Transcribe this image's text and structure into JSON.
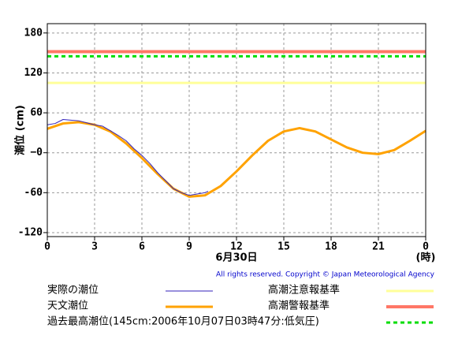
{
  "chart_data": {
    "type": "line",
    "y_label": "潮位 (cm)",
    "x_label": "6月30日",
    "x_unit": "(時)",
    "copyright": "All rights reserved. Copyright © Japan Meteorological Agency",
    "xlim": [
      0,
      24
    ],
    "xticks": [
      0,
      3,
      6,
      9,
      12,
      15,
      18,
      21,
      {
        "value": 24,
        "label": "0"
      }
    ],
    "ylim": [
      -126,
      194
    ],
    "yticks": [
      180,
      120,
      60,
      {
        "value": 0,
        "label": "−0"
      },
      -60,
      -120
    ],
    "grid": true,
    "series": [
      {
        "name": "実際の潮位",
        "color": "#3322bb",
        "width": 1,
        "x": [
          0,
          0.5,
          1,
          1.5,
          2,
          2.5,
          3,
          3.5,
          4,
          4.5,
          5,
          5.5,
          6,
          6.5,
          7,
          7.5,
          8,
          8.5,
          9,
          9.5,
          10,
          10.2
        ],
        "values": [
          42,
          44,
          50,
          49,
          48,
          45,
          42,
          40,
          33,
          26,
          18,
          6,
          -4,
          -16,
          -30,
          -42,
          -54,
          -60,
          -64,
          -62,
          -60,
          -58
        ]
      },
      {
        "name": "天文潮位",
        "color": "#ffa200",
        "width": 3,
        "x": [
          0,
          1,
          2,
          3,
          4,
          5,
          6,
          7,
          8,
          9,
          10,
          11,
          12,
          13,
          14,
          15,
          16,
          17,
          18,
          19,
          20,
          21,
          22,
          23,
          24
        ],
        "values": [
          36,
          44,
          46,
          42,
          32,
          14,
          -8,
          -32,
          -54,
          -66,
          -64,
          -50,
          -28,
          -4,
          18,
          32,
          37,
          32,
          20,
          8,
          0,
          -2,
          4,
          18,
          33
        ]
      }
    ],
    "reference_lines": [
      {
        "name": "高潮注意報基準",
        "value": 105,
        "color": "#ffff99",
        "width": 3,
        "dashed": false
      },
      {
        "name": "高潮警報基準",
        "value": 152,
        "color": "#ff7766",
        "width": 4,
        "dashed": false
      },
      {
        "name": "過去最高潮位(145cm:2006年10月07日03時47分:低気圧)",
        "value": 145,
        "color": "#00dd00",
        "width": 3,
        "dashed": true
      }
    ]
  }
}
